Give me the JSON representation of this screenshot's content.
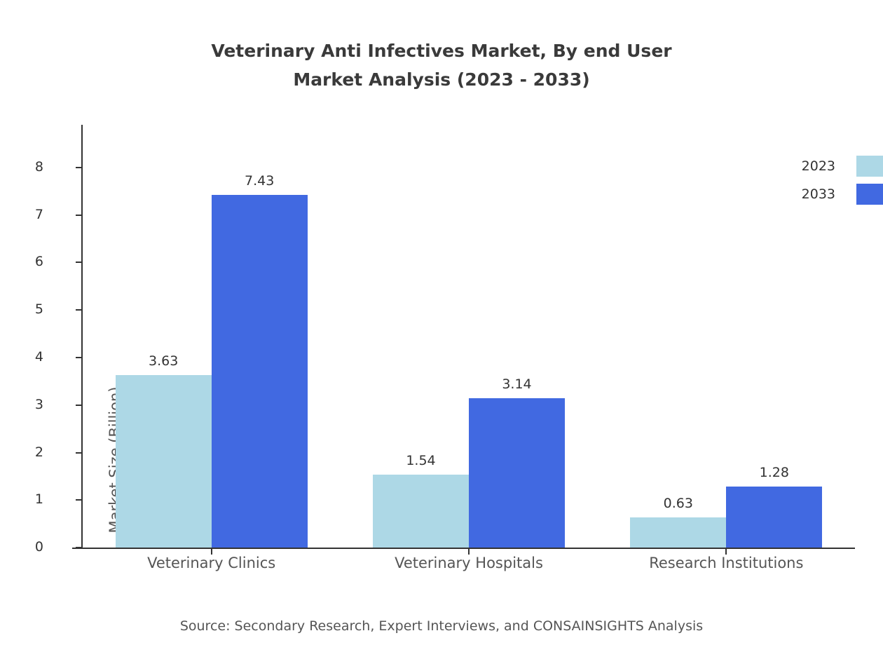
{
  "title": {
    "line1": "Veterinary Anti Infectives Market, By end User",
    "line2": "Market Analysis (2023 - 2033)"
  },
  "source": "Source: Secondary Research, Expert Interviews, and CONSAINSIGHTS Analysis",
  "chart_data": {
    "type": "bar",
    "title": "Veterinary Anti Infectives Market, By end User Market Analysis (2023 - 2033)",
    "categories": [
      "Veterinary Clinics",
      "Veterinary Hospitals",
      "Research Institutions"
    ],
    "series": [
      {
        "name": "2023",
        "color": "#ADD8E6",
        "values": [
          3.63,
          1.54,
          0.63
        ]
      },
      {
        "name": "2033",
        "color": "#4169E1",
        "values": [
          7.43,
          3.14,
          1.28
        ]
      }
    ],
    "xlabel": "",
    "ylabel": "Market Size (Billion)",
    "ylim": [
      0,
      8.9
    ],
    "yticks": [
      0,
      1,
      2,
      3,
      4,
      5,
      6,
      7,
      8
    ],
    "grid": false,
    "legend_position": "top-right"
  },
  "legend": {
    "items": [
      {
        "label": "2023",
        "color": "#ADD8E6"
      },
      {
        "label": "2033",
        "color": "#4169E1"
      }
    ]
  }
}
